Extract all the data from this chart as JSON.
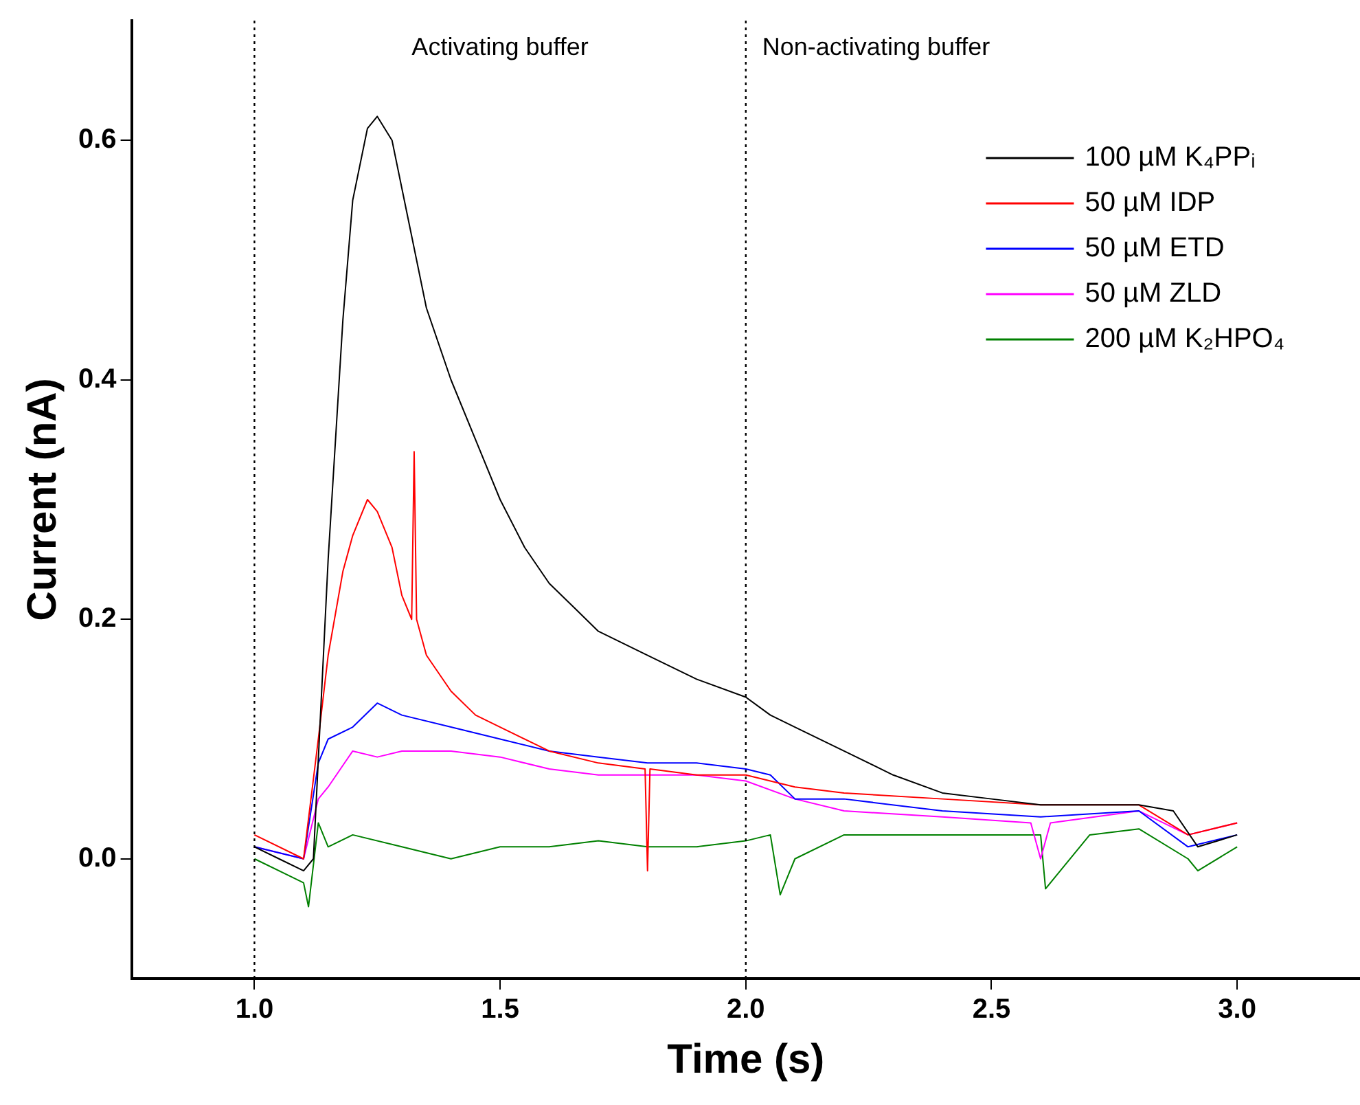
{
  "chart_data": {
    "type": "line",
    "xlabel": "Time (s)",
    "ylabel": "Current (nA)",
    "xlim": [
      0.75,
      3.25
    ],
    "xticks": [
      {
        "value": 1,
        "label": "1.0"
      },
      {
        "value": 1.5,
        "label": "1.5"
      },
      {
        "value": 2,
        "label": "2.0"
      },
      {
        "value": 2.5,
        "label": "2.5"
      },
      {
        "value": 3,
        "label": "3.0"
      }
    ],
    "ylim": [
      -0.1,
      0.7
    ],
    "yticks": [
      {
        "value": 0,
        "label": "0.0"
      },
      {
        "value": 0.2,
        "label": "0.2"
      },
      {
        "value": 0.4,
        "label": "0.4"
      },
      {
        "value": 0.6,
        "label": "0.6"
      }
    ],
    "grid": false,
    "legend": "top right",
    "marker": "none",
    "line_style": "solid",
    "ref_lines": [
      {
        "axis": "x",
        "value": 1,
        "color": "#000000",
        "line_style": "dotted"
      },
      {
        "axis": "x",
        "value": 2,
        "color": "#000000",
        "line_style": "dotted"
      }
    ],
    "annotations": [
      "Activating buffer",
      "Non-activating buffer"
    ],
    "series": [
      {
        "name": "100 µM K₄PPᵢ",
        "color": "#000000",
        "x": [
          1.0,
          1.05,
          1.1,
          1.12,
          1.15,
          1.18,
          1.2,
          1.23,
          1.25,
          1.28,
          1.3,
          1.33,
          1.35,
          1.4,
          1.45,
          1.5,
          1.55,
          1.6,
          1.65,
          1.7,
          1.8,
          1.9,
          2.0,
          2.05,
          2.1,
          2.2,
          2.3,
          2.4,
          2.5,
          2.6,
          2.7,
          2.8,
          2.87,
          2.92,
          3.0
        ],
        "values": [
          0.01,
          0.0,
          -0.01,
          0.0,
          0.25,
          0.45,
          0.55,
          0.61,
          0.62,
          0.6,
          0.56,
          0.5,
          0.46,
          0.4,
          0.35,
          0.3,
          0.26,
          0.23,
          0.21,
          0.19,
          0.17,
          0.15,
          0.135,
          0.12,
          0.11,
          0.09,
          0.07,
          0.055,
          0.05,
          0.045,
          0.045,
          0.045,
          0.04,
          0.01,
          0.02
        ]
      },
      {
        "name": "50 µM IDP",
        "color": "#ff0000",
        "x": [
          1.0,
          1.1,
          1.13,
          1.15,
          1.18,
          1.2,
          1.23,
          1.25,
          1.28,
          1.3,
          1.32,
          1.325,
          1.33,
          1.35,
          1.4,
          1.45,
          1.5,
          1.6,
          1.7,
          1.795,
          1.8,
          1.805,
          1.9,
          2.0,
          2.1,
          2.2,
          2.4,
          2.6,
          2.8,
          2.9,
          3.0
        ],
        "values": [
          0.02,
          0.0,
          0.1,
          0.17,
          0.24,
          0.27,
          0.3,
          0.29,
          0.26,
          0.22,
          0.2,
          0.34,
          0.2,
          0.17,
          0.14,
          0.12,
          0.11,
          0.09,
          0.08,
          0.075,
          -0.01,
          0.075,
          0.07,
          0.07,
          0.06,
          0.055,
          0.05,
          0.045,
          0.045,
          0.02,
          0.03
        ]
      },
      {
        "name": "50 µM ETD",
        "color": "#0000ff",
        "x": [
          1.0,
          1.1,
          1.13,
          1.15,
          1.2,
          1.25,
          1.3,
          1.4,
          1.5,
          1.6,
          1.7,
          1.8,
          1.9,
          2.0,
          2.05,
          2.1,
          2.2,
          2.4,
          2.6,
          2.8,
          2.9,
          3.0
        ],
        "values": [
          0.01,
          0.0,
          0.08,
          0.1,
          0.11,
          0.13,
          0.12,
          0.11,
          0.1,
          0.09,
          0.085,
          0.08,
          0.08,
          0.075,
          0.07,
          0.05,
          0.05,
          0.04,
          0.035,
          0.04,
          0.01,
          0.02
        ]
      },
      {
        "name": "50 µM ZLD",
        "color": "#ff00ff",
        "x": [
          1.0,
          1.1,
          1.13,
          1.15,
          1.2,
          1.25,
          1.3,
          1.4,
          1.5,
          1.6,
          1.7,
          1.8,
          1.9,
          2.0,
          2.1,
          2.2,
          2.4,
          2.58,
          2.6,
          2.62,
          2.8,
          2.9,
          3.0
        ],
        "values": [
          0.01,
          0.0,
          0.05,
          0.06,
          0.09,
          0.085,
          0.09,
          0.09,
          0.085,
          0.075,
          0.07,
          0.07,
          0.07,
          0.065,
          0.05,
          0.04,
          0.035,
          0.03,
          0.0,
          0.03,
          0.04,
          0.02,
          0.03
        ]
      },
      {
        "name": "200 µM K₂HPO₄",
        "color": "#008000",
        "x": [
          1.0,
          1.1,
          1.11,
          1.13,
          1.15,
          1.2,
          1.3,
          1.4,
          1.5,
          1.6,
          1.7,
          1.8,
          1.9,
          2.0,
          2.05,
          2.07,
          2.1,
          2.2,
          2.4,
          2.6,
          2.61,
          2.7,
          2.8,
          2.9,
          2.92,
          3.0
        ],
        "values": [
          0.0,
          -0.02,
          -0.04,
          0.03,
          0.01,
          0.02,
          0.01,
          0.0,
          0.01,
          0.01,
          0.015,
          0.01,
          0.01,
          0.015,
          0.02,
          -0.03,
          0.0,
          0.02,
          0.02,
          0.02,
          -0.025,
          0.02,
          0.025,
          0.0,
          -0.01,
          0.01
        ]
      }
    ]
  }
}
